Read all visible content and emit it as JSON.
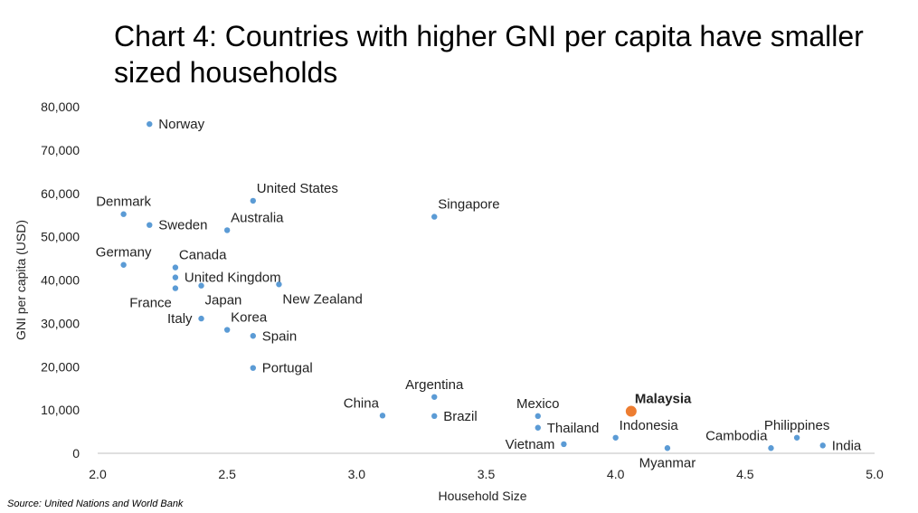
{
  "title": "Chart 4: Countries with higher GNI per capita have smaller sized households",
  "source": "Source: United Nations and World Bank",
  "colors": {
    "point": "#5b9bd5",
    "highlight": "#ed7d31",
    "axis": "#bfbfbf"
  },
  "chart_data": {
    "type": "scatter",
    "title": "Chart 4: Countries with higher GNI per capita have smaller sized households",
    "xlabel": "Household Size",
    "ylabel": "GNI per capita (USD)",
    "xlim": [
      2.0,
      5.0
    ],
    "ylim": [
      0,
      80000
    ],
    "xticks": [
      "2.0",
      "2.5",
      "3.0",
      "3.5",
      "4.0",
      "4.5",
      "5.0"
    ],
    "yticks": [
      "0",
      "10,000",
      "20,000",
      "30,000",
      "40,000",
      "50,000",
      "60,000",
      "70,000",
      "80,000"
    ],
    "grid": false,
    "points": [
      {
        "label": "Norway",
        "x": 2.2,
        "y": 76000,
        "anchor": "right"
      },
      {
        "label": "United States",
        "x": 2.6,
        "y": 58300,
        "anchor": "above-right"
      },
      {
        "label": "Denmark",
        "x": 2.1,
        "y": 55200,
        "anchor": "above"
      },
      {
        "label": "Sweden",
        "x": 2.2,
        "y": 52700,
        "anchor": "right"
      },
      {
        "label": "Australia",
        "x": 2.5,
        "y": 51500,
        "anchor": "above-right"
      },
      {
        "label": "Singapore",
        "x": 3.3,
        "y": 54600,
        "anchor": "above-right"
      },
      {
        "label": "Germany",
        "x": 2.1,
        "y": 43500,
        "anchor": "above"
      },
      {
        "label": "Canada",
        "x": 2.3,
        "y": 42900,
        "anchor": "above-right"
      },
      {
        "label": "United Kingdom",
        "x": 2.3,
        "y": 40600,
        "anchor": "right"
      },
      {
        "label": "France",
        "x": 2.3,
        "y": 38100,
        "anchor": "below-left"
      },
      {
        "label": "Japan",
        "x": 2.4,
        "y": 38700,
        "anchor": "below-right"
      },
      {
        "label": "New Zealand",
        "x": 2.7,
        "y": 39000,
        "anchor": "below-right"
      },
      {
        "label": "Italy",
        "x": 2.4,
        "y": 31100,
        "anchor": "left"
      },
      {
        "label": "Korea",
        "x": 2.5,
        "y": 28500,
        "anchor": "above-right"
      },
      {
        "label": "Spain",
        "x": 2.6,
        "y": 27100,
        "anchor": "right"
      },
      {
        "label": "Portugal",
        "x": 2.6,
        "y": 19700,
        "anchor": "right"
      },
      {
        "label": "China",
        "x": 3.1,
        "y": 8700,
        "anchor": "above-left"
      },
      {
        "label": "Argentina",
        "x": 3.3,
        "y": 13000,
        "anchor": "above"
      },
      {
        "label": "Brazil",
        "x": 3.3,
        "y": 8600,
        "anchor": "right"
      },
      {
        "label": "Mexico",
        "x": 3.7,
        "y": 8600,
        "anchor": "above"
      },
      {
        "label": "Thailand",
        "x": 3.7,
        "y": 5900,
        "anchor": "right"
      },
      {
        "label": "Vietnam",
        "x": 3.8,
        "y": 2100,
        "anchor": "left"
      },
      {
        "label": "Malaysia",
        "x": 4.06,
        "y": 9700,
        "anchor": "above-right",
        "highlight": true
      },
      {
        "label": "Indonesia",
        "x": 4.0,
        "y": 3600,
        "anchor": "above-right"
      },
      {
        "label": "Myanmar",
        "x": 4.2,
        "y": 1200,
        "anchor": "below"
      },
      {
        "label": "Cambodia",
        "x": 4.6,
        "y": 1200,
        "anchor": "above-left"
      },
      {
        "label": "Philippines",
        "x": 4.7,
        "y": 3600,
        "anchor": "above"
      },
      {
        "label": "India",
        "x": 4.8,
        "y": 1800,
        "anchor": "right"
      }
    ]
  }
}
